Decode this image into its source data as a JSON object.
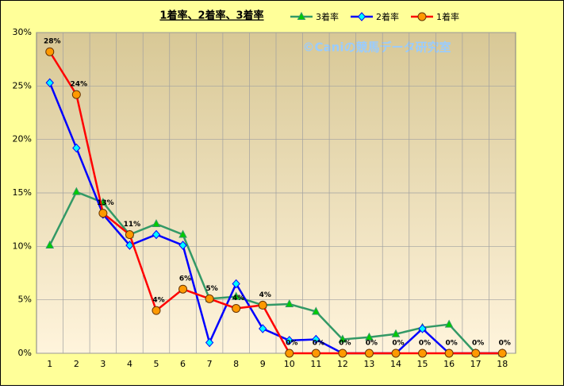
{
  "chart_data": {
    "type": "line",
    "title": "1着率、2着率、3着率",
    "watermark": "©Caniの競馬データ研究室",
    "categories": [
      "1",
      "2",
      "3",
      "4",
      "5",
      "6",
      "7",
      "8",
      "9",
      "10",
      "11",
      "12",
      "13",
      "14",
      "15",
      "16",
      "17",
      "18"
    ],
    "ylim": [
      0,
      30
    ],
    "yticks": [
      {
        "value": 0,
        "label": "0%"
      },
      {
        "value": 5,
        "label": "5%"
      },
      {
        "value": 10,
        "label": "10%"
      },
      {
        "value": 15,
        "label": "15%"
      },
      {
        "value": 20,
        "label": "20%"
      },
      {
        "value": 25,
        "label": "25%"
      },
      {
        "value": 30,
        "label": "30%"
      }
    ],
    "grid": true,
    "legend": "top",
    "series": [
      {
        "name": "3着率",
        "color": "#339966",
        "marker": "triangle",
        "marker_fill": "#00cc00",
        "values": [
          10.1,
          15.1,
          14.1,
          11.1,
          12.1,
          11.1,
          5.1,
          5.3,
          4.5,
          4.6,
          3.9,
          1.3,
          1.5,
          1.8,
          2.4,
          2.7,
          0,
          0
        ]
      },
      {
        "name": "2着率",
        "color": "#0000ff",
        "marker": "diamond",
        "marker_fill": "#00ffff",
        "values": [
          25.3,
          19.2,
          13.0,
          10.1,
          11.1,
          10.1,
          1.0,
          6.5,
          2.3,
          1.2,
          1.3,
          0,
          0,
          0,
          2.3,
          0,
          0,
          0
        ]
      },
      {
        "name": "1着率",
        "color": "#ff0000",
        "marker": "circle",
        "marker_fill": "#ff9900",
        "values": [
          28.2,
          24.2,
          13.1,
          11.1,
          4.0,
          6.0,
          5.1,
          4.2,
          4.5,
          0,
          0,
          0,
          0,
          0,
          0,
          0,
          0,
          0
        ],
        "value_labels": [
          "28%",
          "24%",
          "13%",
          "11%",
          "4%",
          "6%",
          "5%",
          "4%",
          "4%",
          "0%",
          "0%",
          "0%",
          "0%",
          "0%",
          "0%",
          "0%",
          "0%",
          "0%"
        ]
      }
    ]
  }
}
